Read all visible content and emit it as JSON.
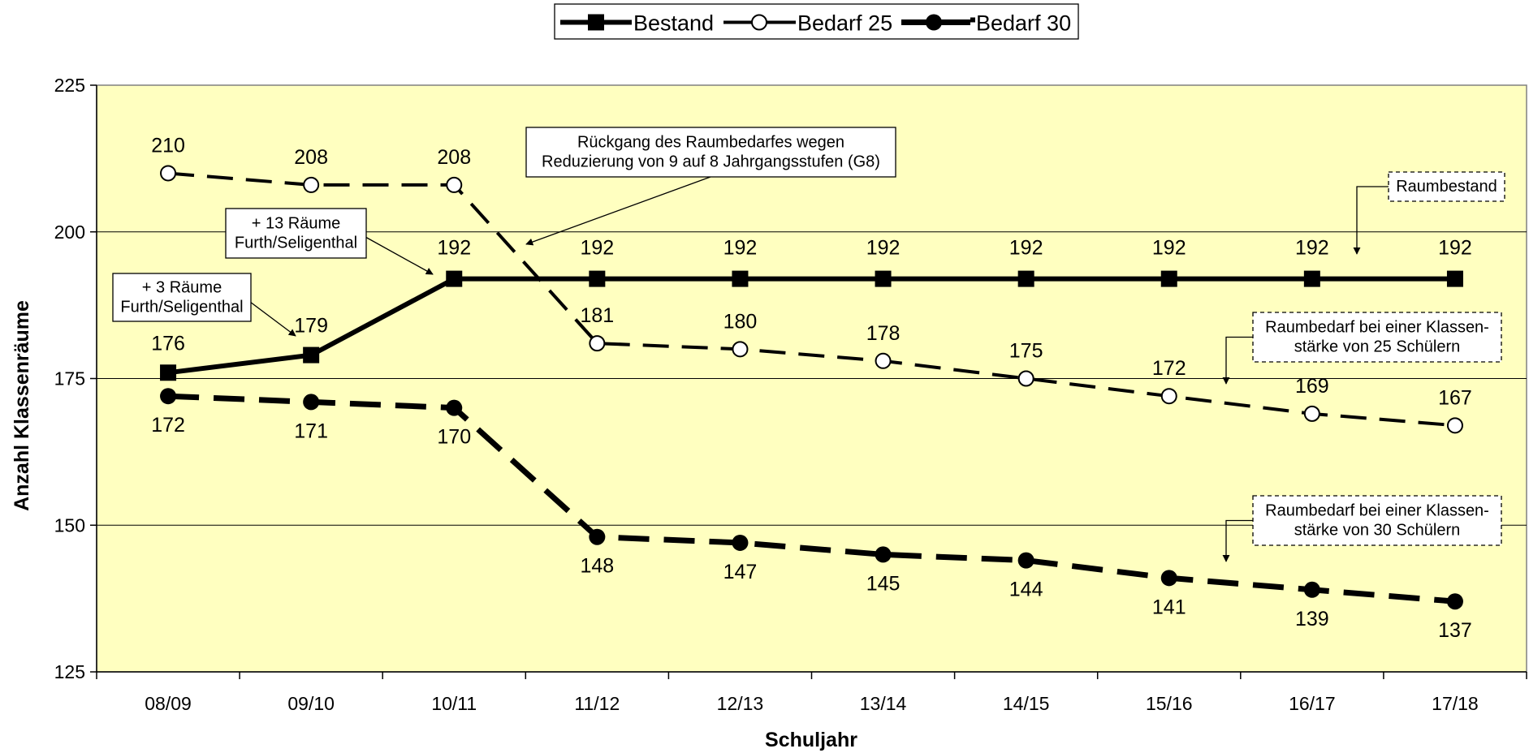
{
  "chart_data": {
    "type": "line",
    "title": "",
    "xlabel": "Schuljahr",
    "ylabel": "Anzahl Klassenräume",
    "ylim": [
      125,
      225
    ],
    "yticks": [
      125,
      150,
      175,
      200,
      225
    ],
    "grid": "horizontal",
    "legend": "top-center",
    "plot_background": "#ffffc0",
    "categories": [
      "08/09",
      "09/10",
      "10/11",
      "11/12",
      "12/13",
      "13/14",
      "14/15",
      "15/16",
      "16/17",
      "17/18"
    ],
    "series": [
      {
        "name": "Bestand",
        "values": [
          176,
          179,
          192,
          192,
          192,
          192,
          192,
          192,
          192,
          192
        ],
        "marker": "square",
        "line": "solid",
        "color": "#000000"
      },
      {
        "name": "Bedarf 25",
        "values": [
          210,
          208,
          208,
          181,
          180,
          178,
          175,
          172,
          169,
          167
        ],
        "marker": "open-circle",
        "line": "dashed",
        "color": "#000000"
      },
      {
        "name": "Bedarf 30",
        "values": [
          172,
          171,
          170,
          148,
          147,
          145,
          144,
          141,
          139,
          137
        ],
        "marker": "filled-circle",
        "line": "dashed",
        "color": "#000000"
      }
    ],
    "annotations": [
      {
        "id": "note-3-raeume",
        "lines": [
          "+ 3 Räume",
          "Furth/Seligenthal"
        ]
      },
      {
        "id": "note-13-raeume",
        "lines": [
          "+ 13 Räume",
          "Furth/Seligenthal"
        ]
      },
      {
        "id": "note-rueckgang",
        "lines": [
          "Rückgang des Raumbedarfes wegen",
          "Reduzierung von 9 auf 8 Jahrgangsstufen (G8)"
        ]
      },
      {
        "id": "note-raumbestand",
        "lines": [
          "Raumbestand"
        ]
      },
      {
        "id": "note-bedarf-25",
        "lines": [
          "Raumbedarf bei einer Klassen-",
          "stärke von 25 Schülern"
        ]
      },
      {
        "id": "note-bedarf-30",
        "lines": [
          "Raumbedarf bei einer Klassen-",
          "stärke von 30 Schülern"
        ]
      }
    ]
  }
}
